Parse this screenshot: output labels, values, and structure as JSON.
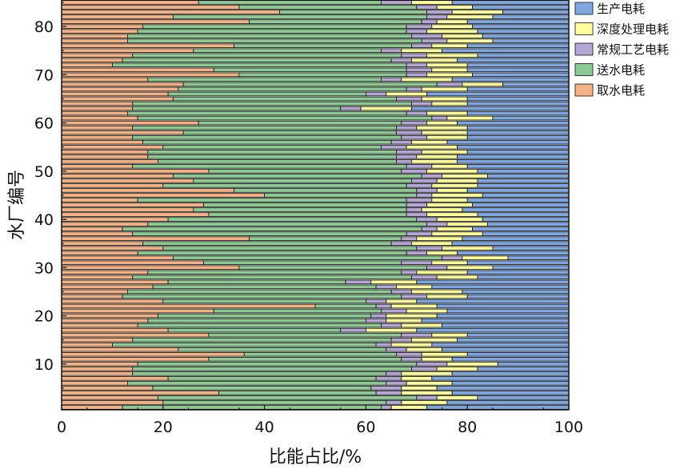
{
  "chart_data": {
    "type": "bar",
    "orientation": "horizontal",
    "stacked": true,
    "xlabel": "比能占比/%",
    "ylabel": "水厂编号",
    "xlim": [
      0,
      100
    ],
    "ylim": [
      1,
      85
    ],
    "xticks": [
      0,
      20,
      40,
      60,
      80,
      100
    ],
    "yticks": [
      10,
      20,
      30,
      40,
      50,
      60,
      70,
      80
    ],
    "grid": false,
    "legend_position": "right",
    "legend_order": [
      4,
      3,
      2,
      1,
      0
    ],
    "colors": [
      "#F4B183",
      "#8DC992",
      "#B4A7D6",
      "#FFFF99",
      "#7EA6E0"
    ],
    "categories": [
      1,
      2,
      3,
      4,
      5,
      6,
      7,
      8,
      9,
      10,
      11,
      12,
      13,
      14,
      15,
      16,
      17,
      18,
      19,
      20,
      21,
      22,
      23,
      24,
      25,
      26,
      27,
      28,
      29,
      30,
      31,
      32,
      33,
      34,
      35,
      36,
      37,
      38,
      39,
      40,
      41,
      42,
      43,
      44,
      45,
      46,
      47,
      48,
      49,
      50,
      51,
      52,
      53,
      54,
      55,
      56,
      57,
      58,
      59,
      60,
      61,
      62,
      63,
      64,
      65,
      66,
      67,
      68,
      69,
      70,
      71,
      72,
      73,
      74,
      75,
      76,
      77,
      78,
      79,
      80,
      81,
      82,
      83,
      84,
      85
    ],
    "series": [
      {
        "name": "取水电耗",
        "values": [
          12,
          20,
          19,
          31,
          18,
          13,
          21,
          14,
          14,
          15,
          29,
          36,
          23,
          10,
          14,
          29,
          21,
          15,
          17,
          19,
          30,
          50,
          20,
          12,
          13,
          18,
          21,
          14,
          17,
          35,
          28,
          22,
          15,
          20,
          16,
          37,
          14,
          12,
          17,
          21,
          29,
          26,
          28,
          15,
          40,
          34,
          20,
          26,
          22,
          29,
          14,
          19,
          17,
          17,
          20,
          16,
          14,
          24,
          14,
          27,
          15,
          13,
          14,
          14,
          22,
          21,
          23,
          24,
          17,
          35,
          30,
          10,
          12,
          14,
          26,
          34,
          13,
          13,
          15,
          16,
          37,
          22,
          43,
          35,
          27
        ]
      },
      {
        "name": "送水电耗",
        "values": [
          51,
          44,
          51,
          31,
          43,
          51,
          41,
          50,
          55,
          55,
          38,
          30,
          41,
          52,
          51,
          38,
          34,
          48,
          43,
          42,
          33,
          12,
          40,
          55,
          52,
          44,
          35,
          55,
          50,
          37,
          39,
          53,
          53,
          50,
          49,
          30,
          54,
          59,
          55,
          49,
          39,
          42,
          40,
          53,
          30,
          36,
          48,
          43,
          49,
          38,
          54,
          47,
          49,
          49,
          43,
          49,
          53,
          42,
          52,
          40,
          58,
          55,
          41,
          55,
          44,
          39,
          45,
          50,
          46,
          33,
          38,
          58,
          53,
          53,
          37,
          35,
          58,
          56,
          53,
          52,
          34,
          50,
          29,
          35,
          36
        ]
      },
      {
        "name": "常规工艺电耗",
        "values": [
          2,
          3,
          4,
          5,
          6,
          4,
          5,
          3,
          5,
          6,
          4,
          5,
          4,
          3,
          4,
          6,
          5,
          4,
          4,
          3,
          5,
          3,
          4,
          5,
          4,
          4,
          5,
          5,
          3,
          4,
          6,
          4,
          4,
          5,
          4,
          3,
          5,
          3,
          4,
          4,
          4,
          3,
          4,
          5,
          3,
          4,
          5,
          5,
          4,
          5,
          5,
          3,
          4,
          5,
          5,
          4,
          5,
          5,
          4,
          5,
          3,
          4,
          4,
          4,
          5,
          4,
          3,
          5,
          4,
          4,
          5,
          4,
          4,
          5,
          4,
          4,
          5,
          6,
          4,
          5,
          3,
          4,
          5,
          4,
          6
        ]
      },
      {
        "name": "深度处理电耗",
        "values": [
          7,
          9,
          8,
          10,
          7,
          9,
          6,
          10,
          8,
          10,
          6,
          9,
          7,
          8,
          9,
          7,
          10,
          8,
          7,
          10,
          8,
          9,
          6,
          8,
          10,
          7,
          9,
          8,
          10,
          9,
          7,
          9,
          6,
          10,
          8,
          9,
          10,
          7,
          8,
          9,
          10,
          8,
          9,
          7,
          10,
          6,
          9,
          8,
          9,
          10,
          7,
          9,
          8,
          9,
          10,
          7,
          8,
          9,
          10,
          6,
          9,
          8,
          10,
          7,
          9,
          8,
          9,
          8,
          10,
          9,
          7,
          8,
          9,
          10,
          8,
          7,
          9,
          8,
          10,
          8,
          6,
          9,
          10,
          7,
          8
        ]
      },
      {
        "name": "生产电耗",
        "values": [
          28,
          24,
          18,
          23,
          26,
          23,
          27,
          23,
          18,
          14,
          23,
          20,
          25,
          27,
          22,
          20,
          30,
          25,
          29,
          26,
          24,
          26,
          30,
          20,
          21,
          27,
          30,
          18,
          20,
          15,
          20,
          12,
          22,
          15,
          23,
          21,
          17,
          19,
          16,
          17,
          18,
          21,
          19,
          20,
          17,
          20,
          18,
          18,
          16,
          18,
          20,
          22,
          22,
          20,
          22,
          24,
          20,
          20,
          20,
          22,
          15,
          20,
          31,
          20,
          20,
          28,
          20,
          13,
          23,
          19,
          20,
          20,
          22,
          18,
          25,
          20,
          15,
          17,
          18,
          19,
          20,
          15,
          13,
          19,
          23
        ]
      }
    ]
  },
  "legend": {
    "items": [
      {
        "label": "生产电耗",
        "color": "#7EA6E0"
      },
      {
        "label": "深度处理电耗",
        "color": "#FFFF99"
      },
      {
        "label": "常规工艺电耗",
        "color": "#B4A7D6"
      },
      {
        "label": "送水电耗",
        "color": "#8DC992"
      },
      {
        "label": "取水电耗",
        "color": "#F4B183"
      }
    ]
  }
}
